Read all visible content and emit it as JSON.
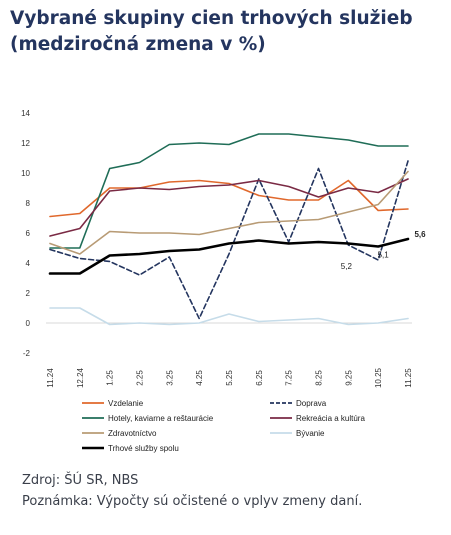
{
  "title_line1": "Vybrané skupiny cien trhových služieb",
  "title_line2": "(medziročná zmena v %)",
  "footer_source": "Zdroj: ŠÚ SR, NBS",
  "footer_note": "Poznámka: Výpočty sú očistené o vplyv zmeny daní.",
  "chart_data": {
    "type": "line",
    "title": "Vybrané skupiny cien trhových služieb",
    "subtitle": "(medziročná zmena v %)",
    "xlabel": "",
    "ylabel": "",
    "ylim": [
      -2,
      14
    ],
    "yticks": [
      -2,
      0,
      2,
      4,
      6,
      8,
      10,
      12,
      14
    ],
    "grid": false,
    "legend_position": "bottom",
    "categories": [
      "11.24",
      "12.24",
      "1.25",
      "2.25",
      "3.25",
      "4.25",
      "5.25",
      "6.25",
      "7.25",
      "8.25",
      "9.25",
      "10.25",
      "11.25"
    ],
    "series": [
      {
        "name": "Vzdelanie",
        "color": "#e0682c",
        "dash": false,
        "values": [
          7.1,
          7.3,
          9.0,
          9.0,
          9.4,
          9.5,
          9.3,
          8.5,
          8.2,
          8.2,
          9.5,
          7.5,
          7.6
        ]
      },
      {
        "name": "Doprava",
        "color": "#24355f",
        "dash": true,
        "values": [
          4.9,
          4.3,
          4.1,
          3.2,
          4.4,
          0.3,
          4.6,
          9.6,
          5.4,
          10.3,
          5.2,
          4.2,
          10.8
        ]
      },
      {
        "name": "Hotely, kaviarne a reštaurácie",
        "color": "#1f6d57",
        "dash": false,
        "values": [
          5.0,
          5.0,
          10.3,
          10.7,
          11.9,
          12.0,
          11.9,
          12.6,
          12.6,
          12.4,
          12.2,
          11.8,
          11.8
        ]
      },
      {
        "name": "Rekreácia a kultúra",
        "color": "#7a2a44",
        "dash": false,
        "values": [
          5.8,
          6.3,
          8.8,
          9.0,
          8.9,
          9.1,
          9.2,
          9.5,
          9.1,
          8.4,
          9.0,
          8.7,
          9.6
        ]
      },
      {
        "name": "Zdravotníctvo",
        "color": "#b89b75",
        "dash": false,
        "values": [
          5.3,
          4.6,
          6.1,
          6.0,
          6.0,
          5.9,
          6.3,
          6.7,
          6.8,
          6.9,
          7.4,
          7.9,
          10.1
        ]
      },
      {
        "name": "Bývanie",
        "color": "#c6dce9",
        "dash": false,
        "values": [
          1.0,
          1.0,
          -0.1,
          0.0,
          -0.1,
          0.0,
          0.6,
          0.1,
          0.2,
          0.3,
          -0.1,
          0.0,
          0.3
        ]
      },
      {
        "name": "Trhové služby spolu",
        "color": "#000000",
        "dash": false,
        "values": [
          3.3,
          3.3,
          4.5,
          4.6,
          4.8,
          4.9,
          5.3,
          5.5,
          5.3,
          5.4,
          5.3,
          5.1,
          5.6
        ]
      }
    ],
    "annotations": [
      {
        "text": "5,2",
        "series": "Doprava",
        "index": 10
      },
      {
        "text": "5,1",
        "series": "Trhové služby spolu",
        "index": 11
      },
      {
        "text": "5,6",
        "series": "Trhové služby spolu",
        "index": 12
      }
    ]
  }
}
